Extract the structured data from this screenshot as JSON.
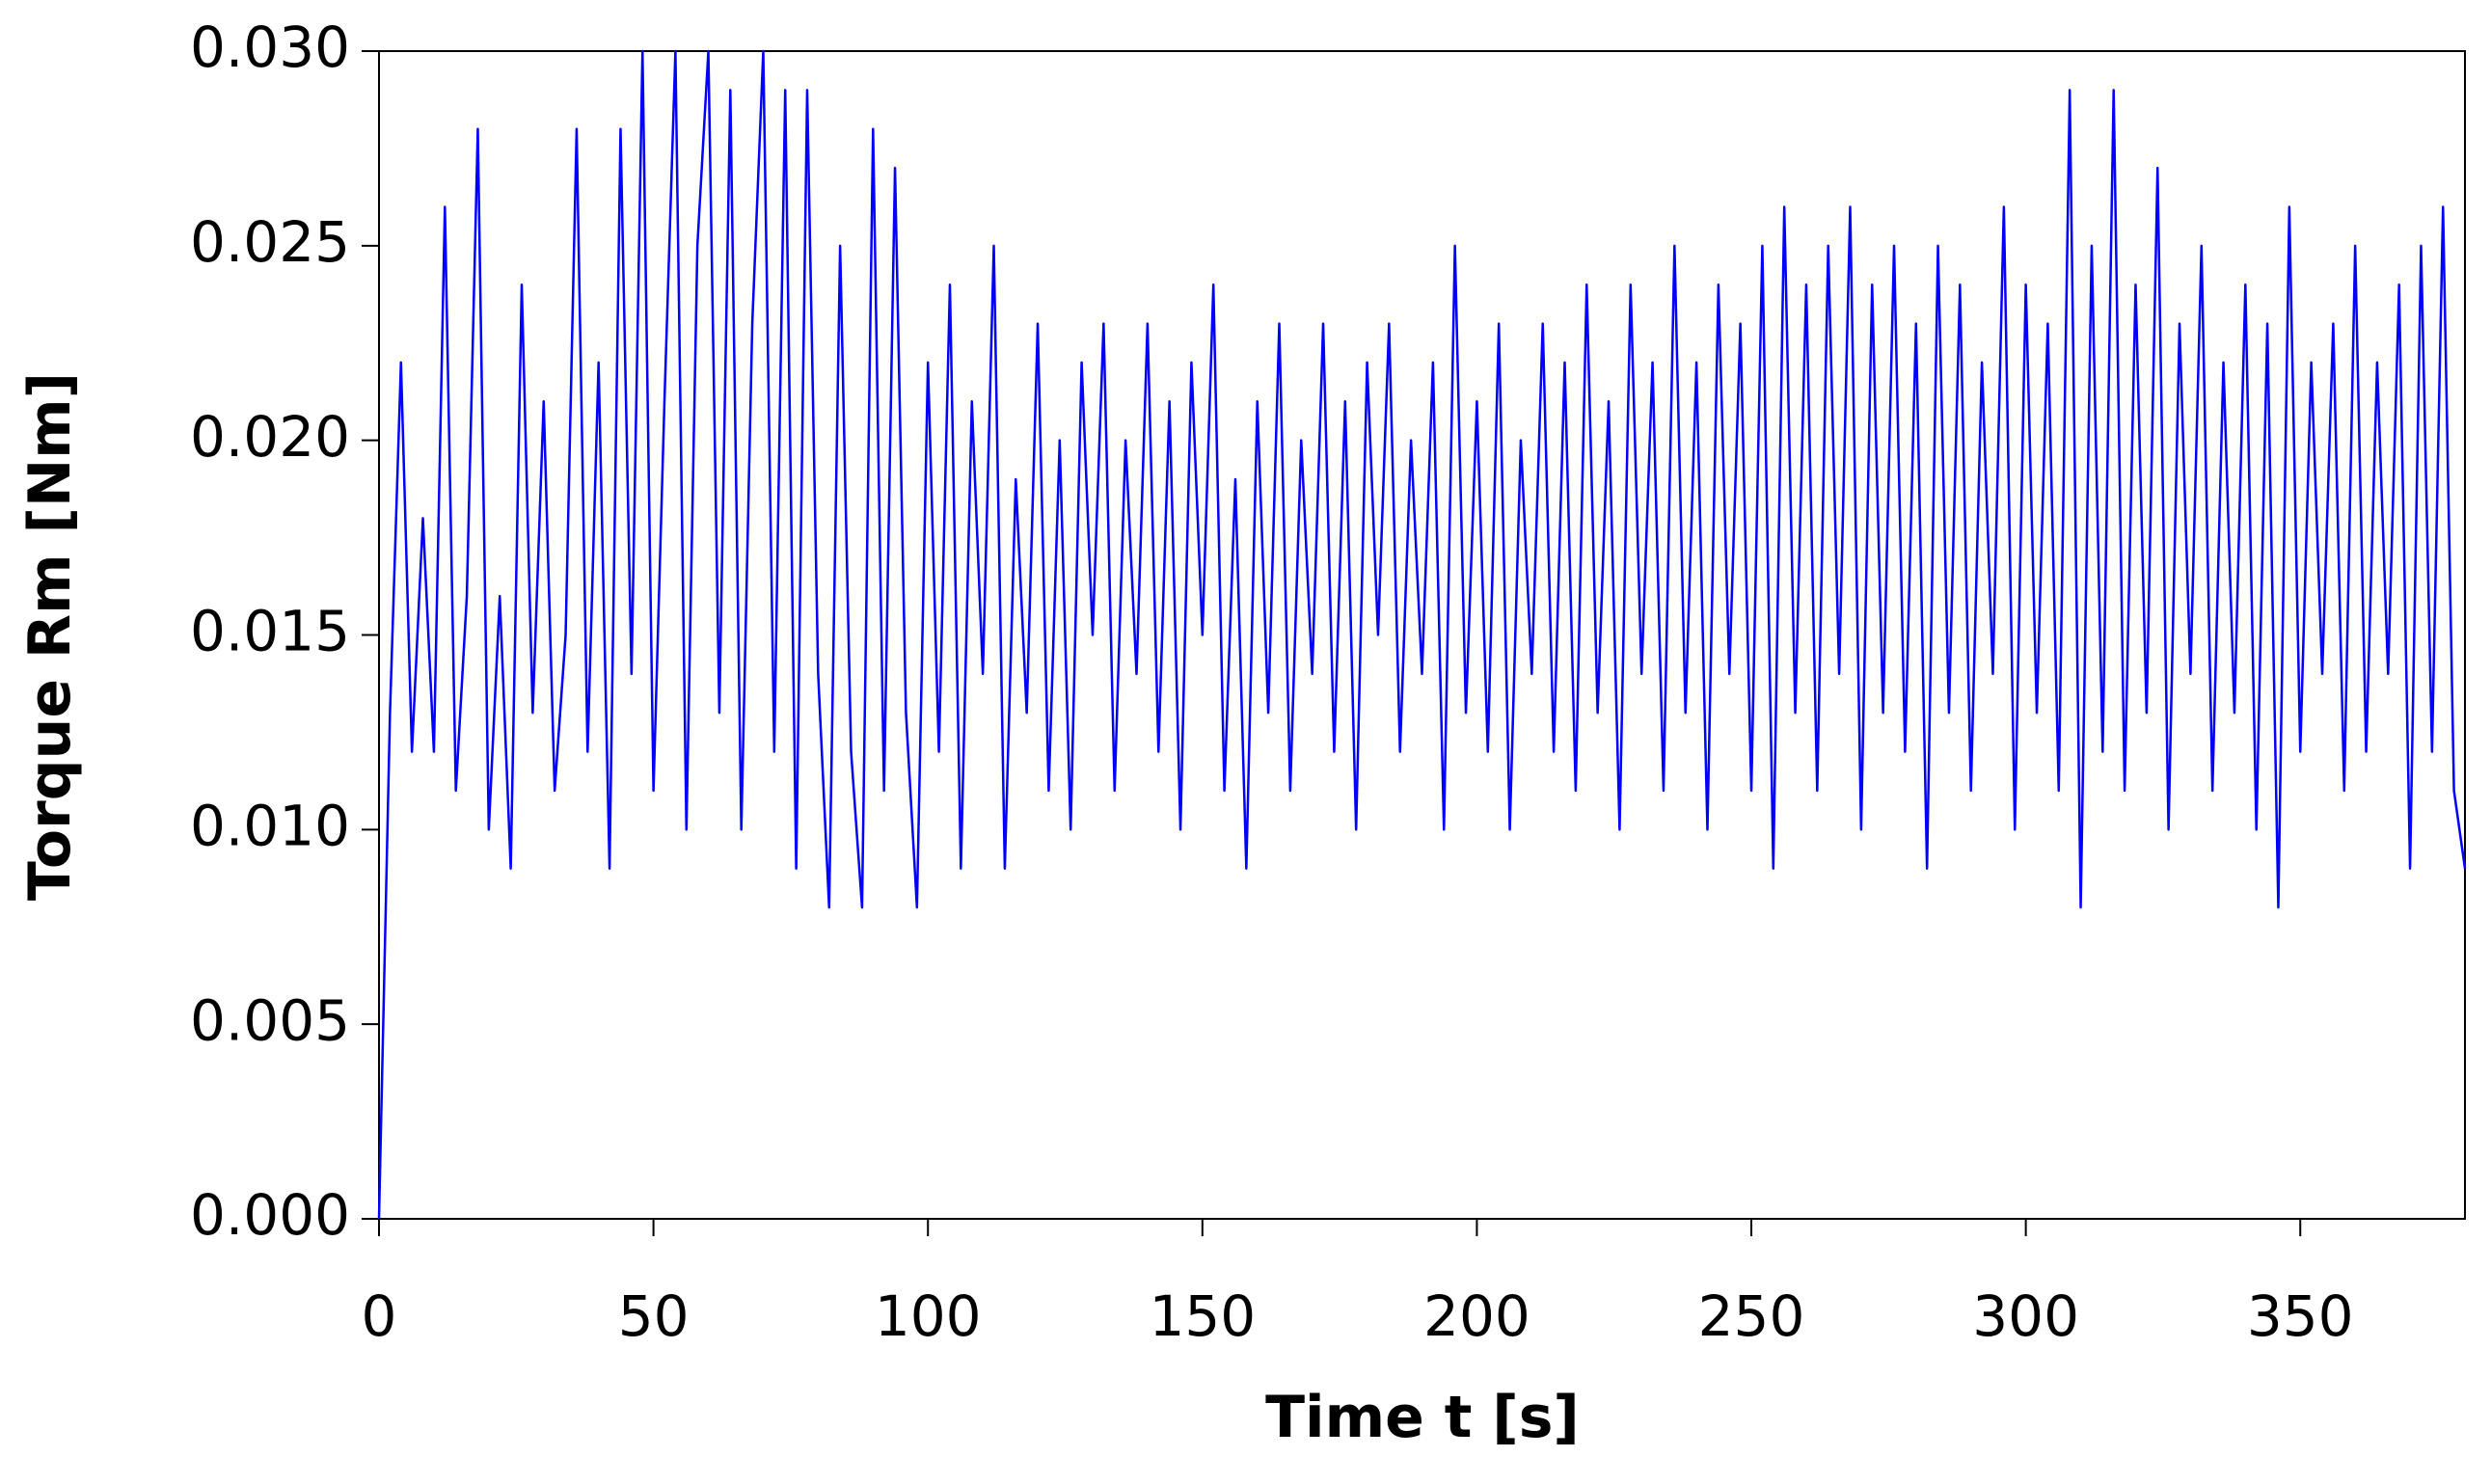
{
  "chart_data": {
    "type": "line",
    "x_label": "Time t [s]",
    "y_label": "Torque Rm [Nm]",
    "xlim": [
      0,
      380
    ],
    "ylim": [
      0,
      0.03
    ],
    "xticks": [
      0,
      50,
      100,
      150,
      200,
      250,
      300,
      350
    ],
    "yticks": [
      {
        "value": 0,
        "label": "0.000"
      },
      {
        "value": 0.005,
        "label": "0.005"
      },
      {
        "value": 0.01,
        "label": "0.010"
      },
      {
        "value": 0.015,
        "label": "0.015"
      },
      {
        "value": 0.02,
        "label": "0.020"
      },
      {
        "value": 0.025,
        "label": "0.025"
      },
      {
        "value": 0.03,
        "label": "0.030"
      }
    ],
    "x": [
      0,
      2,
      4,
      6,
      8,
      10,
      12,
      14,
      16,
      18,
      20,
      22,
      24,
      26,
      28,
      30,
      32,
      34,
      36,
      38,
      40,
      42,
      44,
      46,
      48,
      50,
      52,
      54,
      56,
      58,
      60,
      62,
      64,
      66,
      68,
      70,
      72,
      74,
      76,
      78,
      80,
      82,
      84,
      86,
      88,
      90,
      92,
      94,
      96,
      98,
      100,
      102,
      104,
      106,
      108,
      110,
      112,
      114,
      116,
      118,
      120,
      122,
      124,
      126,
      128,
      130,
      132,
      134,
      136,
      138,
      140,
      142,
      144,
      146,
      148,
      150,
      152,
      154,
      156,
      158,
      160,
      162,
      164,
      166,
      168,
      170,
      172,
      174,
      176,
      178,
      180,
      182,
      184,
      186,
      188,
      190,
      192,
      194,
      196,
      198,
      200,
      202,
      204,
      206,
      208,
      210,
      212,
      214,
      216,
      218,
      220,
      222,
      224,
      226,
      228,
      230,
      232,
      234,
      236,
      238,
      240,
      242,
      244,
      246,
      248,
      250,
      252,
      254,
      256,
      258,
      260,
      262,
      264,
      266,
      268,
      270,
      272,
      274,
      276,
      278,
      280,
      282,
      284,
      286,
      288,
      290,
      292,
      294,
      296,
      298,
      300,
      302,
      304,
      306,
      308,
      310,
      312,
      314,
      316,
      318,
      320,
      322,
      324,
      326,
      328,
      330,
      332,
      334,
      336,
      338,
      340,
      342,
      344,
      346,
      348,
      350,
      352,
      354,
      356,
      358,
      360,
      362,
      364,
      366,
      368,
      370,
      372,
      374,
      376,
      378,
      380
    ],
    "series": [
      {
        "name": "Torque Rm",
        "color": "#0000ff",
        "values": [
          0,
          0.013,
          0.022,
          0.012,
          0.018,
          0.012,
          0.026,
          0.011,
          0.016,
          0.028,
          0.01,
          0.016,
          0.009,
          0.024,
          0.013,
          0.021,
          0.011,
          0.015,
          0.028,
          0.012,
          0.022,
          0.009,
          0.028,
          0.014,
          0.03,
          0.011,
          0.021,
          0.03,
          0.01,
          0.025,
          0.03,
          0.013,
          0.029,
          0.01,
          0.023,
          0.03,
          0.012,
          0.029,
          0.009,
          0.029,
          0.014,
          0.008,
          0.025,
          0.012,
          0.008,
          0.028,
          0.011,
          0.027,
          0.013,
          0.008,
          0.022,
          0.012,
          0.024,
          0.009,
          0.021,
          0.014,
          0.025,
          0.009,
          0.019,
          0.013,
          0.023,
          0.011,
          0.02,
          0.01,
          0.022,
          0.015,
          0.023,
          0.011,
          0.02,
          0.014,
          0.023,
          0.012,
          0.021,
          0.01,
          0.022,
          0.015,
          0.024,
          0.011,
          0.019,
          0.009,
          0.021,
          0.013,
          0.023,
          0.011,
          0.02,
          0.014,
          0.023,
          0.012,
          0.021,
          0.01,
          0.022,
          0.015,
          0.023,
          0.012,
          0.02,
          0.014,
          0.022,
          0.01,
          0.025,
          0.013,
          0.021,
          0.012,
          0.023,
          0.01,
          0.02,
          0.014,
          0.023,
          0.012,
          0.022,
          0.011,
          0.024,
          0.013,
          0.021,
          0.01,
          0.024,
          0.014,
          0.022,
          0.011,
          0.025,
          0.013,
          0.022,
          0.01,
          0.024,
          0.014,
          0.023,
          0.011,
          0.025,
          0.009,
          0.026,
          0.013,
          0.024,
          0.011,
          0.025,
          0.014,
          0.026,
          0.01,
          0.024,
          0.013,
          0.025,
          0.012,
          0.023,
          0.009,
          0.025,
          0.013,
          0.024,
          0.011,
          0.022,
          0.014,
          0.026,
          0.01,
          0.024,
          0.013,
          0.023,
          0.011,
          0.029,
          0.008,
          0.025,
          0.012,
          0.029,
          0.011,
          0.024,
          0.013,
          0.027,
          0.01,
          0.023,
          0.014,
          0.025,
          0.011,
          0.022,
          0.013,
          0.024,
          0.01,
          0.023,
          0.008,
          0.026,
          0.012,
          0.022,
          0.014,
          0.023,
          0.011,
          0.025,
          0.012,
          0.022,
          0.014,
          0.024,
          0.009,
          0.025,
          0.012,
          0.026,
          0.011,
          0.009
        ]
      }
    ]
  }
}
